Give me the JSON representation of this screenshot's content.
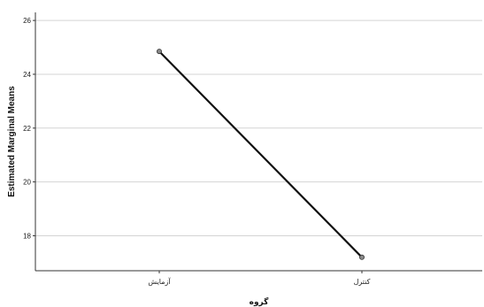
{
  "chart_data": {
    "type": "line",
    "title": "",
    "xlabel": "گروه",
    "ylabel": "Estimated Marginal Means",
    "categories": [
      "آزمایش",
      "کنترل"
    ],
    "series": [
      {
        "values": [
          24.85,
          17.2
        ]
      }
    ],
    "ylim": [
      16.7,
      26.3
    ],
    "yticks": [
      18,
      20,
      22,
      24,
      26
    ],
    "grid": "horizontal",
    "legend": "none",
    "colors": {
      "line": "#111111",
      "marker_fill": "#888888",
      "grid": "#d4d4d4",
      "axis": "#333333"
    }
  }
}
